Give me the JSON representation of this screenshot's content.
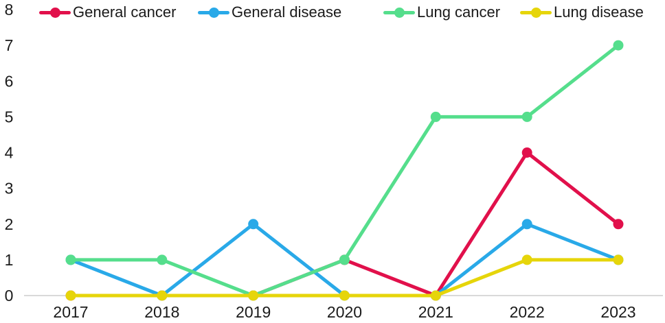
{
  "chart_data": {
    "type": "line",
    "title": "",
    "xlabel": "",
    "ylabel": "",
    "categories": [
      "2017",
      "2018",
      "2019",
      "2020",
      "2021",
      "2022",
      "2023"
    ],
    "series": [
      {
        "name": "General cancer",
        "color": "#E1104B",
        "values": [
          0,
          0,
          0,
          1,
          0,
          4,
          2
        ]
      },
      {
        "name": "General disease",
        "color": "#29A9E8",
        "values": [
          1,
          0,
          2,
          0,
          0,
          2,
          1
        ]
      },
      {
        "name": "Lung cancer",
        "color": "#55DE8C",
        "values": [
          1,
          1,
          0,
          1,
          5,
          5,
          7
        ]
      },
      {
        "name": "Lung disease",
        "color": "#E6D50A",
        "values": [
          0,
          0,
          0,
          0,
          0,
          1,
          1
        ]
      }
    ],
    "ylim": [
      0,
      8
    ],
    "yticks": [
      0,
      1,
      2,
      3,
      4,
      5,
      6,
      7,
      8
    ],
    "grid": "baseline-only",
    "legend_position": "top"
  },
  "colors": {
    "axis_line": "#D9D9D9",
    "text": "#1A1A1A",
    "background": "#FFFFFF"
  }
}
